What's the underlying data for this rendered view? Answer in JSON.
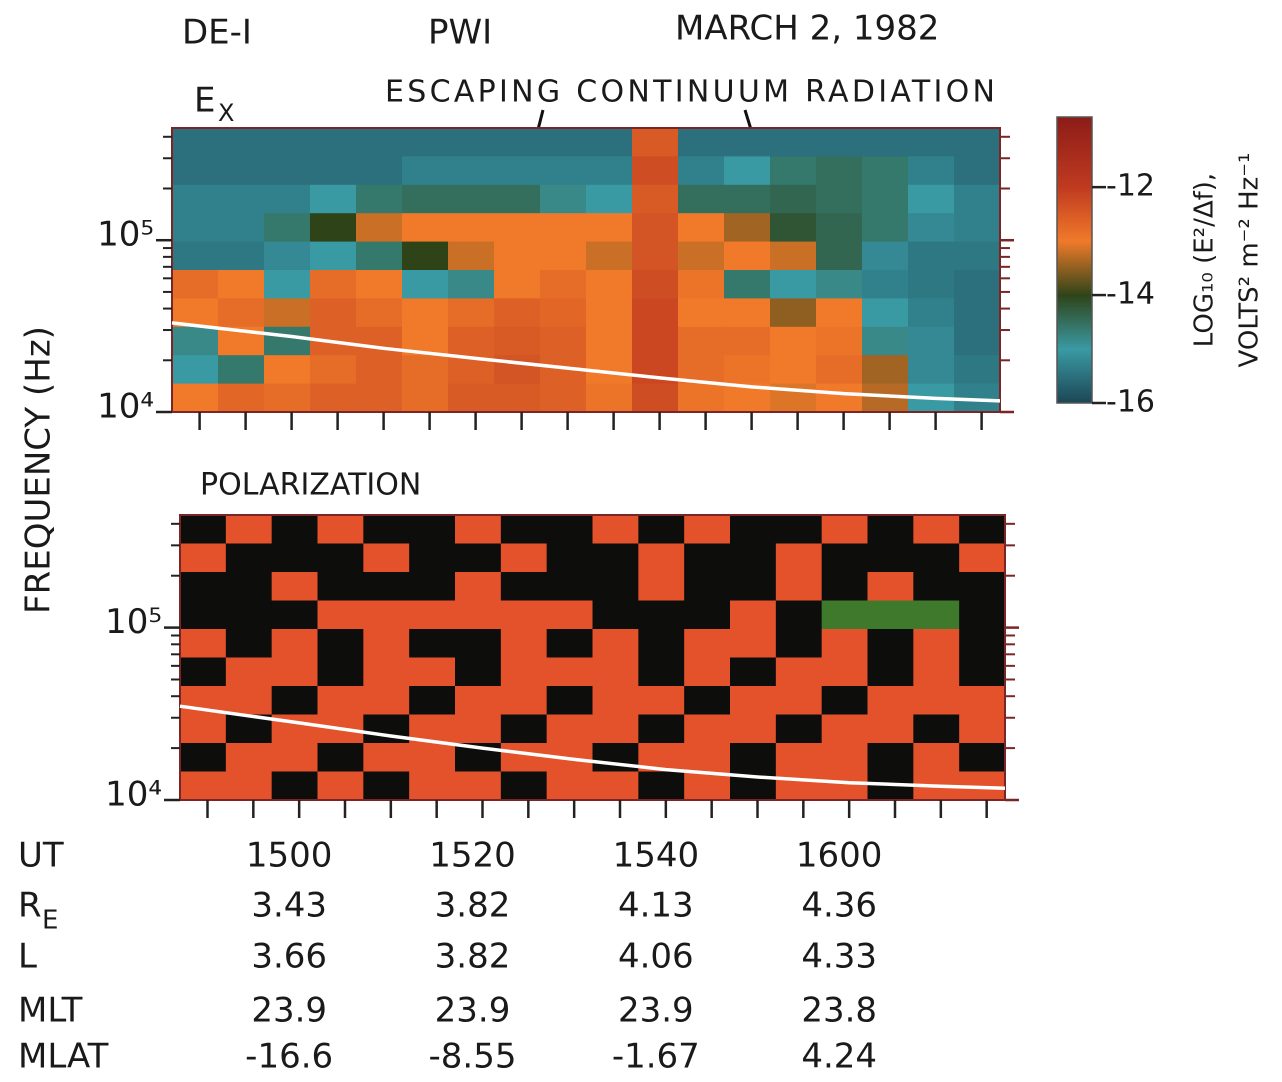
{
  "header": {
    "mission": "DE-I",
    "instrument": "PWI",
    "date": "MARCH 2, 1982"
  },
  "y_label": "FREQUENCY (Hz)",
  "chart_data": [
    {
      "type": "spectrogram",
      "title": "E",
      "title_sub": "X",
      "annotation": "ESCAPING CONTINUUM RADIATION",
      "xlim": [
        887,
        977
      ],
      "xticks": [
        890,
        895,
        900,
        905,
        910,
        915,
        920,
        925,
        930,
        935,
        940,
        945,
        950,
        955,
        960,
        965,
        970,
        975
      ],
      "ylim": [
        10000,
        450000
      ],
      "yscale": "log",
      "yticks": [
        {
          "value": 10000,
          "label": "10⁴"
        },
        {
          "value": 100000,
          "label": "10⁵"
        }
      ],
      "minor_yticks": [
        20000,
        30000,
        40000,
        50000,
        60000,
        70000,
        80000,
        90000,
        200000,
        300000,
        400000
      ],
      "z": [
        [
          -15.5,
          -15.5,
          -15.5,
          -15.5,
          -15.5,
          -15.5,
          -15.5,
          -15.5,
          -15.5,
          -15.5,
          -12.5,
          -15.5,
          -15.5,
          -15.5,
          -15.5,
          -15.5,
          -15.5,
          -15.5
        ],
        [
          -15.5,
          -15.5,
          -15.5,
          -15.5,
          -15.5,
          -15.3,
          -15.3,
          -15.3,
          -15.3,
          -15.3,
          -12.3,
          -15.3,
          -15,
          -14.6,
          -14.5,
          -14.6,
          -15.3,
          -15.5
        ],
        [
          -15.3,
          -15.3,
          -15.3,
          -15,
          -14.6,
          -14.5,
          -14.5,
          -14.5,
          -14.8,
          -15,
          -12.5,
          -14.5,
          -14.5,
          -14.4,
          -14.5,
          -14.6,
          -15,
          -15.3
        ],
        [
          -15.3,
          -15.3,
          -14.6,
          -14,
          -13.2,
          -13,
          -13,
          -13,
          -13,
          -13,
          -12.4,
          -13,
          -13.4,
          -14.2,
          -14.4,
          -14.6,
          -15.2,
          -15.3
        ],
        [
          -15.4,
          -15.4,
          -15.2,
          -15,
          -14.6,
          -14,
          -13.2,
          -13,
          -13,
          -13.2,
          -12.4,
          -13.2,
          -13,
          -13.2,
          -14.4,
          -15.2,
          -15.4,
          -15.4
        ],
        [
          -12.8,
          -13,
          -15,
          -12.8,
          -13,
          -15,
          -14.8,
          -13,
          -12.8,
          -13,
          -12.3,
          -12.9,
          -14.6,
          -15,
          -14.8,
          -15.3,
          -15.4,
          -15.5
        ],
        [
          -13,
          -12.8,
          -13.2,
          -12.6,
          -12.8,
          -13,
          -12.8,
          -12.6,
          -12.7,
          -13,
          -12.2,
          -13,
          -13,
          -13.5,
          -13,
          -15,
          -15.3,
          -15.5
        ],
        [
          -14.8,
          -13,
          -14.6,
          -12.6,
          -12.6,
          -13,
          -12.6,
          -12.5,
          -12.6,
          -13,
          -12.2,
          -12.8,
          -12.8,
          -13,
          -12.9,
          -14.8,
          -15.2,
          -15.5
        ],
        [
          -15,
          -14.6,
          -13,
          -12.8,
          -12.6,
          -12.8,
          -12.6,
          -12.4,
          -12.6,
          -13,
          -12.2,
          -12.8,
          -12.9,
          -13,
          -12.8,
          -13.4,
          -15.2,
          -15.4
        ],
        [
          -13,
          -12.7,
          -12.8,
          -12.6,
          -12.6,
          -12.8,
          -12.5,
          -12.5,
          -12.6,
          -12.9,
          -12.3,
          -12.9,
          -13,
          -13.1,
          -13,
          -13.3,
          -15,
          -15.3
        ]
      ],
      "line": {
        "color": "#ffffff",
        "x": [
          887,
          900,
          910,
          920,
          930,
          940,
          950,
          960,
          970,
          977
        ],
        "values": [
          33000,
          27500,
          23500,
          20500,
          18000,
          15800,
          14000,
          12800,
          12000,
          11600
        ]
      }
    },
    {
      "type": "polarization",
      "title": "POLARIZATION",
      "xlim": [
        887,
        977
      ],
      "xticks": [
        890,
        895,
        900,
        905,
        910,
        915,
        920,
        925,
        930,
        935,
        940,
        945,
        950,
        955,
        960,
        965,
        970,
        975
      ],
      "ylim": [
        10000,
        450000
      ],
      "yscale": "log",
      "yticks": [
        {
          "value": 10000,
          "label": "10⁴"
        },
        {
          "value": 100000,
          "label": "10⁵"
        }
      ],
      "minor_yticks": [
        20000,
        30000,
        40000,
        50000,
        60000,
        70000,
        80000,
        90000,
        200000,
        300000,
        400000
      ],
      "color_scale": [
        {
          "value": -1,
          "color": "#3f7a2c"
        },
        {
          "value": 0,
          "color": "#0d0d0b"
        },
        {
          "value": 1,
          "color": "#e4522c"
        }
      ],
      "z": [
        [
          0,
          1,
          0,
          1,
          0,
          0,
          1,
          0,
          0,
          1,
          0,
          1,
          0,
          0,
          1,
          0,
          1,
          0
        ],
        [
          1,
          0,
          0,
          0,
          1,
          0,
          0,
          1,
          0,
          0,
          1,
          0,
          0,
          1,
          0,
          0,
          0,
          1
        ],
        [
          0,
          0,
          1,
          0,
          0,
          0,
          1,
          0,
          0,
          0,
          1,
          0,
          0,
          1,
          0,
          1,
          0,
          0
        ],
        [
          0,
          0,
          0,
          1,
          1,
          1,
          1,
          1,
          1,
          0,
          0,
          0,
          1,
          0,
          -1,
          -1,
          -1,
          0
        ],
        [
          1,
          0,
          1,
          0,
          1,
          0,
          0,
          1,
          0,
          1,
          0,
          1,
          1,
          0,
          1,
          0,
          1,
          0
        ],
        [
          0,
          1,
          1,
          0,
          1,
          1,
          0,
          1,
          1,
          1,
          0,
          1,
          0,
          1,
          1,
          0,
          1,
          0
        ],
        [
          1,
          1,
          0,
          1,
          1,
          0,
          1,
          1,
          0,
          1,
          1,
          0,
          1,
          1,
          0,
          1,
          1,
          1
        ],
        [
          1,
          0,
          1,
          1,
          0,
          1,
          1,
          0,
          1,
          1,
          0,
          1,
          1,
          0,
          1,
          1,
          0,
          1
        ],
        [
          0,
          1,
          1,
          0,
          1,
          1,
          0,
          1,
          1,
          0,
          1,
          1,
          0,
          1,
          1,
          0,
          1,
          0
        ],
        [
          1,
          1,
          0,
          1,
          0,
          1,
          1,
          0,
          1,
          1,
          0,
          1,
          0,
          1,
          1,
          0,
          1,
          1
        ]
      ],
      "line": {
        "color": "#ffffff",
        "x": [
          887,
          900,
          910,
          920,
          930,
          940,
          950,
          960,
          970,
          977
        ],
        "values": [
          35000,
          28000,
          23500,
          20000,
          17200,
          15000,
          13600,
          12600,
          12000,
          11700
        ]
      }
    }
  ],
  "colorbar": {
    "label": "LOG₁₀ (E²/Δf),",
    "label2": "VOLTS² m⁻² Hz⁻¹",
    "lim": [
      -16,
      -10.7
    ],
    "ticks": [
      -12,
      -14,
      -16
    ],
    "stops": [
      {
        "value": -16,
        "color": "#1c4654"
      },
      {
        "value": -15,
        "color": "#3a9aa4"
      },
      {
        "value": -14,
        "color": "#2e4418"
      },
      {
        "value": -13,
        "color": "#f07a2a"
      },
      {
        "value": -12,
        "color": "#c03a20"
      },
      {
        "value": -10.7,
        "color": "#8c1c18"
      }
    ]
  },
  "ephemeris": {
    "x": [
      900,
      920,
      940,
      960
    ],
    "rows": [
      {
        "name": "UT",
        "values": [
          "1500",
          "1520",
          "1540",
          "1600"
        ]
      },
      {
        "name": "R",
        "name_sub": "E",
        "values": [
          3.43,
          3.82,
          4.13,
          4.36
        ]
      },
      {
        "name": "L",
        "values": [
          3.66,
          3.82,
          4.06,
          4.33
        ]
      },
      {
        "name": "MLT",
        "values": [
          23.9,
          23.9,
          23.9,
          23.8
        ]
      },
      {
        "name": "MLAT",
        "values": [
          -16.6,
          -8.55,
          -1.67,
          4.24
        ]
      }
    ]
  }
}
